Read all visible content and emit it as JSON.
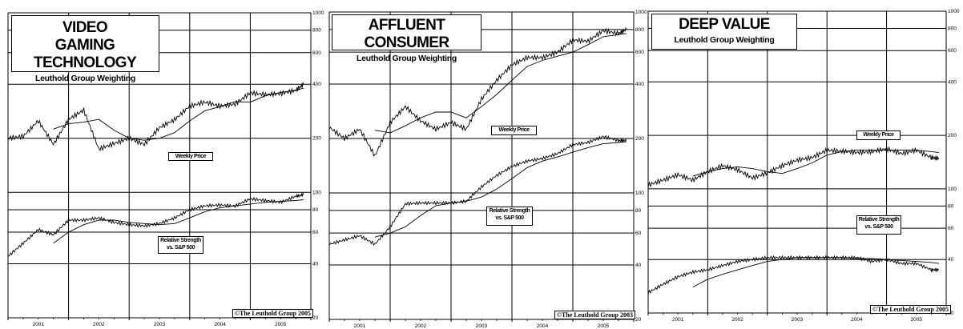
{
  "chart_data": [
    {
      "type": "line",
      "title": "VIDEO GAMING TECHNOLOGY",
      "subtitle": "Leuthold Group Weighting",
      "legend_price": "Weekly Price",
      "legend_rs_1": "Relative Strength",
      "legend_rs_2": "vs. S&P 500",
      "copyright": "©The Leuthold Group 2005",
      "y_scale": "log",
      "ylim": [
        20,
        1000
      ],
      "y_ticks": [
        "1000",
        "800",
        "600",
        "400",
        "200",
        "100",
        "80",
        "60",
        "40",
        "20"
      ],
      "x_ticks": [
        "2001",
        "2002",
        "2003",
        "2004",
        "2005"
      ],
      "xlim": [
        2001,
        2006
      ],
      "grid": true,
      "x": [
        2001.0,
        2001.25,
        2001.5,
        2001.75,
        2002.0,
        2002.25,
        2002.5,
        2002.75,
        2003.0,
        2003.25,
        2003.5,
        2003.75,
        2004.0,
        2004.25,
        2004.5,
        2004.75,
        2005.0,
        2005.25,
        2005.5,
        2005.75,
        2005.88
      ],
      "series": [
        {
          "values": [
            200,
            205,
            250,
            185,
            255,
            287,
            174,
            187,
            200,
            185,
            229,
            254,
            302,
            318,
            302,
            310,
            358,
            350,
            355,
            370,
            400
          ]
        },
        {
          "values": [
            null,
            null,
            null,
            225,
            241,
            246,
            255,
            222,
            200,
            195,
            200,
            215,
            250,
            285,
            300,
            320,
            318,
            345,
            360,
            370,
            380
          ]
        },
        {
          "values": [
            44,
            52,
            62,
            58,
            70,
            70,
            72,
            68,
            66,
            65,
            67,
            72,
            80,
            84,
            85,
            84,
            92,
            90,
            88,
            95,
            97
          ]
        },
        {
          "values": [
            null,
            null,
            null,
            52,
            60,
            66,
            70,
            70,
            68,
            67,
            66,
            67,
            72,
            78,
            82,
            84,
            86,
            88,
            89,
            90,
            91
          ]
        }
      ]
    },
    {
      "type": "line",
      "title": "AFFLUENT CONSUMER",
      "subtitle": "Leuthold Group Weighting",
      "legend_price": "Weekly Price",
      "legend_rs_1": "Relative Strength",
      "legend_rs_2": "vs. S&P 500",
      "copyright": "©The Leuthold Group 2003",
      "y_scale": "log",
      "ylim": [
        20,
        1000
      ],
      "y_ticks": [
        "1000",
        "800",
        "600",
        "400",
        "200",
        "100",
        "80",
        "60",
        "40",
        "20"
      ],
      "x_ticks": [
        "2001",
        "2002",
        "2003",
        "2004",
        "2005"
      ],
      "xlim": [
        2001,
        2006
      ],
      "grid": true,
      "x": [
        2001.0,
        2001.25,
        2001.5,
        2001.75,
        2002.0,
        2002.25,
        2002.5,
        2002.75,
        2003.0,
        2003.25,
        2003.5,
        2003.75,
        2004.0,
        2004.25,
        2004.5,
        2004.75,
        2005.0,
        2005.25,
        2005.5,
        2005.75,
        2005.88
      ],
      "series": [
        {
          "values": [
            230,
            200,
            225,
            160,
            245,
            300,
            250,
            225,
            245,
            225,
            330,
            420,
            510,
            560,
            560,
            600,
            700,
            690,
            790,
            760,
            800
          ]
        },
        {
          "values": [
            null,
            null,
            null,
            222,
            215,
            235,
            260,
            280,
            280,
            260,
            300,
            350,
            420,
            500,
            540,
            570,
            600,
            660,
            730,
            750,
            760
          ]
        },
        {
          "values": [
            52,
            55,
            58,
            52,
            65,
            87,
            88,
            88,
            88,
            90,
            108,
            125,
            140,
            150,
            155,
            165,
            185,
            190,
            205,
            195,
            195
          ]
        },
        {
          "values": [
            null,
            null,
            null,
            57,
            60,
            65,
            75,
            85,
            88,
            90,
            95,
            105,
            120,
            138,
            150,
            158,
            168,
            178,
            187,
            190,
            192
          ]
        }
      ]
    },
    {
      "type": "line",
      "title": "DEEP VALUE",
      "subtitle": "Leuthold Group Weighting",
      "legend_price": "Weekly Price",
      "legend_rs_1": "Relative Strength",
      "legend_rs_2": "vs. S&P 500",
      "copyright": "©The Leuthold Group 2005",
      "y_scale": "log",
      "ylim": [
        20,
        1000
      ],
      "y_ticks": [
        "1000",
        "800",
        "600",
        "400",
        "200",
        "100",
        "80",
        "60",
        "40",
        "20"
      ],
      "x_ticks": [
        "2001",
        "2002",
        "2003",
        "2004",
        "2005"
      ],
      "xlim": [
        2001,
        2006
      ],
      "grid": true,
      "x": [
        2001.0,
        2001.25,
        2001.5,
        2001.75,
        2002.0,
        2002.25,
        2002.5,
        2002.75,
        2003.0,
        2003.25,
        2003.5,
        2003.75,
        2004.0,
        2004.25,
        2004.5,
        2004.75,
        2005.0,
        2005.25,
        2005.5,
        2005.75,
        2005.88
      ],
      "series": [
        {
          "values": [
            105,
            112,
            120,
            112,
            125,
            135,
            128,
            115,
            123,
            135,
            145,
            150,
            165,
            163,
            160,
            162,
            168,
            158,
            165,
            150,
            148
          ]
        },
        {
          "values": [
            null,
            null,
            null,
            118,
            125,
            130,
            133,
            130,
            125,
            122,
            130,
            140,
            155,
            162,
            165,
            165,
            165,
            165,
            165,
            162,
            160
          ]
        },
        {
          "values": [
            26,
            29,
            32,
            34,
            35,
            37,
            39,
            40,
            41,
            41,
            41,
            41,
            41,
            41,
            41,
            39,
            40,
            38,
            38,
            35,
            35
          ]
        },
        {
          "values": [
            null,
            null,
            null,
            28,
            31,
            33,
            35,
            37,
            39,
            40,
            41,
            41,
            41,
            41,
            40.5,
            40.5,
            40,
            39.5,
            39,
            38.5,
            38
          ]
        }
      ]
    }
  ]
}
